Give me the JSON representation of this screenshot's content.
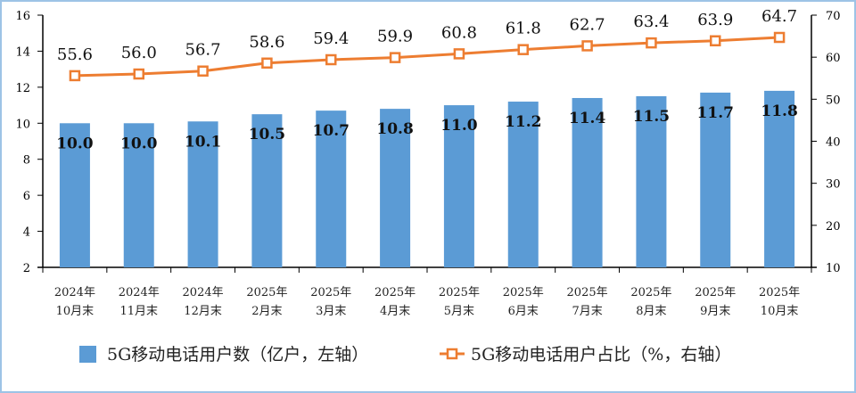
{
  "chart_data": {
    "type": "bar+line",
    "categories": [
      [
        "2024年",
        "10月末"
      ],
      [
        "2024年",
        "11月末"
      ],
      [
        "2024年",
        "12月末"
      ],
      [
        "2025年",
        "2月末"
      ],
      [
        "2025年",
        "3月末"
      ],
      [
        "2025年",
        "4月末"
      ],
      [
        "2025年",
        "5月末"
      ],
      [
        "2025年",
        "6月末"
      ],
      [
        "2025年",
        "7月末"
      ],
      [
        "2025年",
        "8月末"
      ],
      [
        "2025年",
        "9月末"
      ],
      [
        "2025年",
        "10月末"
      ]
    ],
    "series": [
      {
        "name": "5G移动电话用户数（亿户，左轴）",
        "type": "bar",
        "axis": "left",
        "color": "#5b9bd5",
        "values": [
          10.0,
          10.0,
          10.1,
          10.5,
          10.7,
          10.8,
          11.0,
          11.2,
          11.4,
          11.5,
          11.7,
          11.8
        ],
        "labels": [
          "10.0",
          "10.0",
          "10.1",
          "10.5",
          "10.7",
          "10.8",
          "11.0",
          "11.2",
          "11.4",
          "11.5",
          "11.7",
          "11.8"
        ]
      },
      {
        "name": "5G移动电话用户占比（%，右轴）",
        "type": "line",
        "axis": "right",
        "color": "#ed7d31",
        "marker": "square",
        "values": [
          55.6,
          56.0,
          56.7,
          58.6,
          59.4,
          59.9,
          60.8,
          61.8,
          62.7,
          63.4,
          63.9,
          64.7
        ],
        "labels": [
          "55.6",
          "56.0",
          "56.7",
          "58.6",
          "59.4",
          "59.9",
          "60.8",
          "61.8",
          "62.7",
          "63.4",
          "63.9",
          "64.7"
        ]
      }
    ],
    "y_left": {
      "range": [
        2,
        16
      ],
      "ticks": [
        "2",
        "4",
        "6",
        "8",
        "10",
        "12",
        "14",
        "16"
      ]
    },
    "y_right": {
      "range": [
        10,
        70
      ],
      "ticks": [
        "10",
        "20",
        "30",
        "40",
        "50",
        "60",
        "70"
      ]
    },
    "grid": false,
    "legend": "bottom"
  }
}
